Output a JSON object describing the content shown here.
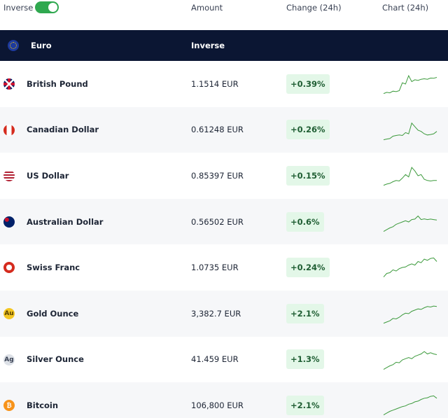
{
  "header": {
    "toggle_label": "Inverse",
    "columns": [
      "Amount",
      "Change (24h)",
      "Chart (24h)"
    ]
  },
  "base": {
    "name": "Euro",
    "mode": "Inverse"
  },
  "table": {
    "rows": [
      {
        "name": "British Pound",
        "amount": "1.1514 EUR",
        "change": "+0.39%",
        "sparkline": [
          1,
          1.5,
          1.3,
          2,
          1.8,
          2.2,
          5.5,
          5,
          8.5,
          6,
          6.8,
          6.5,
          7,
          7.2,
          7,
          7.5,
          7.4,
          7.8
        ]
      },
      {
        "name": "Canadian Dollar",
        "amount": "0.61248 EUR",
        "change": "+0.26%",
        "sparkline": [
          1,
          1.3,
          1.5,
          2.5,
          2.8,
          3,
          2.8,
          4,
          3.5,
          8,
          6.5,
          5,
          4.5,
          3.5,
          3,
          3.2,
          3.5,
          4.5
        ]
      },
      {
        "name": "US Dollar",
        "amount": "0.85397 EUR",
        "change": "+0.15%",
        "sparkline": [
          1,
          1.5,
          1.8,
          2.5,
          3,
          2.8,
          4,
          5.5,
          4.5,
          8.5,
          7,
          5,
          5.5,
          3.5,
          3,
          2.8,
          3,
          3
        ]
      },
      {
        "name": "Australian Dollar",
        "amount": "0.56502 EUR",
        "change": "+0.6%",
        "sparkline": [
          1,
          1.8,
          2.5,
          3,
          4,
          4.5,
          5,
          5.5,
          5,
          6,
          6.2,
          7.5,
          6,
          6.3,
          6,
          6.2,
          6,
          5.8
        ]
      },
      {
        "name": "Swiss Franc",
        "amount": "1.0735 EUR",
        "change": "+0.24%",
        "sparkline": [
          1,
          2.5,
          2.8,
          4,
          3.5,
          4.5,
          5,
          5.2,
          6,
          6.5,
          6,
          7.5,
          7,
          8.5,
          8,
          8.8,
          9,
          7.5
        ]
      },
      {
        "name": "Gold Ounce",
        "icon_text": "Au",
        "amount": "3,382.7 EUR",
        "change": "+2.1%",
        "sparkline": [
          1,
          1.5,
          2,
          3,
          2.8,
          3.5,
          4.5,
          5.2,
          5,
          6,
          6.5,
          7,
          6.8,
          7.5,
          8,
          7.8,
          8.2,
          8
        ]
      },
      {
        "name": "Silver Ounce",
        "icon_text": "Ag",
        "amount": "41.459 EUR",
        "change": "+1.3%",
        "sparkline": [
          1,
          1.8,
          2.5,
          3,
          4,
          3.8,
          5,
          5.5,
          6,
          5.5,
          6.5,
          7,
          7.5,
          8.5,
          7.5,
          8,
          7.5,
          7.2
        ]
      },
      {
        "name": "Bitcoin",
        "icon_text": "₿",
        "amount": "106,800 EUR",
        "change": "+2.1%",
        "sparkline": [
          1,
          1.8,
          2.5,
          3,
          3.5,
          4,
          4.5,
          4.8,
          5.5,
          5.8,
          6.5,
          6.8,
          7.5,
          8,
          8.2,
          8.8,
          9,
          8
        ]
      }
    ]
  }
}
